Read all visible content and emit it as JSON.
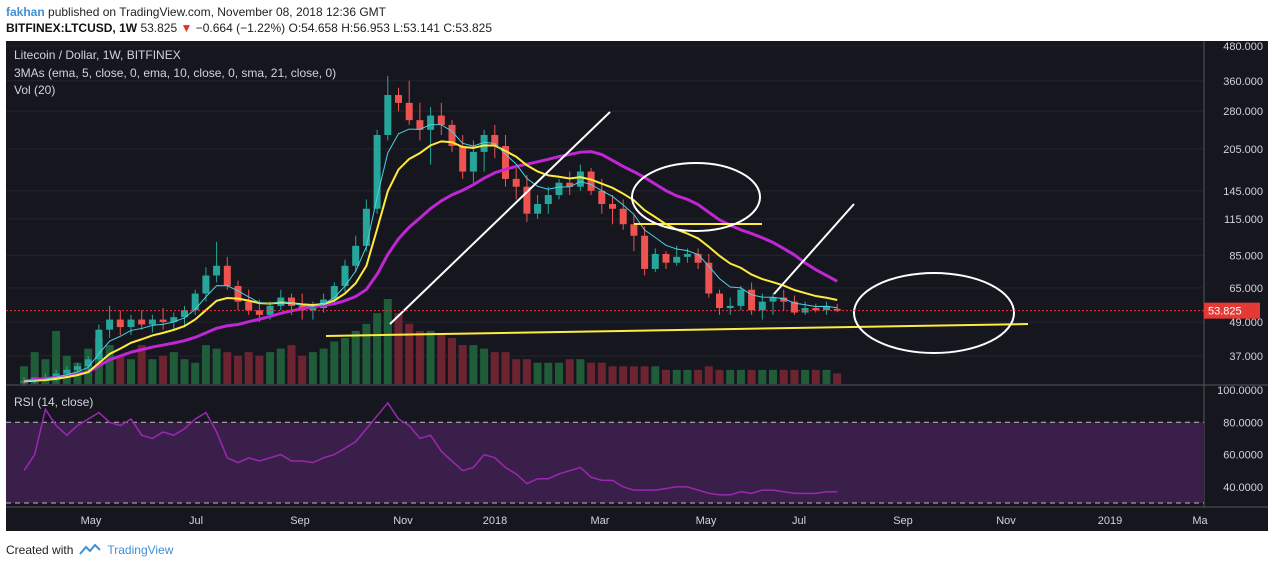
{
  "header": {
    "author": "fakhan",
    "published": "published on TradingView.com, November 08, 2018 12:36 GMT",
    "symbol": "BITFINEX:LTCUSD, 1W",
    "last": "53.825",
    "change": "−0.664 (−1.22%)",
    "open": "O:54.658",
    "high": "H:56.953",
    "low": "L:53.141",
    "close": "C:53.825"
  },
  "chart_data": {
    "type": "candlestick",
    "title": "Litecoin / Dollar, 1W, BITFINEX",
    "indicator_labels": [
      "3MAs (ema, 5, close, 0, ema, 10, close, 0, sma, 21, close, 0)",
      "Vol (20)"
    ],
    "price_axis_ticks": [
      "480.000",
      "360.000",
      "280.000",
      "205.000",
      "145.000",
      "115.000",
      "85.000",
      "65.000",
      "49.000",
      "37.000"
    ],
    "price_scale": "log",
    "last_price_label": "53.825",
    "time_axis_labels": [
      "May",
      "Jul",
      "Sep",
      "Nov",
      "2018",
      "Mar",
      "May",
      "Jul",
      "Sep",
      "Nov",
      "2019",
      "Ma"
    ],
    "candles": [
      [
        30,
        31,
        29,
        30
      ],
      [
        30,
        31,
        29.5,
        31
      ],
      [
        31,
        32,
        30,
        31
      ],
      [
        31,
        33,
        30,
        32
      ],
      [
        32,
        34,
        31,
        33
      ],
      [
        33,
        35,
        32,
        34
      ],
      [
        34,
        37,
        33,
        36
      ],
      [
        36,
        48,
        35,
        46
      ],
      [
        46,
        56,
        43,
        50
      ],
      [
        50,
        54,
        44,
        47
      ],
      [
        47,
        52,
        44,
        50
      ],
      [
        50,
        54,
        46,
        48
      ],
      [
        48,
        52,
        45,
        50
      ],
      [
        50,
        55,
        46,
        49
      ],
      [
        49,
        53,
        46,
        51
      ],
      [
        51,
        56,
        47,
        54
      ],
      [
        54,
        64,
        52,
        62
      ],
      [
        62,
        77,
        58,
        72
      ],
      [
        72,
        95,
        68,
        78
      ],
      [
        78,
        84,
        64,
        66
      ],
      [
        66,
        69,
        54,
        58
      ],
      [
        58,
        64,
        52,
        54
      ],
      [
        54,
        59,
        49,
        52
      ],
      [
        52,
        58,
        50,
        56
      ],
      [
        56,
        64,
        54,
        60
      ],
      [
        60,
        62,
        52,
        56
      ],
      [
        56,
        62,
        50,
        54
      ],
      [
        54,
        58,
        50,
        55
      ],
      [
        55,
        62,
        53,
        59
      ],
      [
        59,
        68,
        57,
        66
      ],
      [
        66,
        82,
        63,
        78
      ],
      [
        78,
        100,
        74,
        92
      ],
      [
        92,
        135,
        88,
        125
      ],
      [
        125,
        240,
        120,
        230
      ],
      [
        230,
        375,
        220,
        320
      ],
      [
        320,
        340,
        280,
        300
      ],
      [
        300,
        360,
        250,
        260
      ],
      [
        260,
        300,
        220,
        240
      ],
      [
        240,
        290,
        180,
        270
      ],
      [
        270,
        300,
        230,
        250
      ],
      [
        250,
        260,
        200,
        210
      ],
      [
        210,
        230,
        160,
        170
      ],
      [
        170,
        220,
        155,
        200
      ],
      [
        200,
        240,
        170,
        230
      ],
      [
        230,
        250,
        190,
        210
      ],
      [
        210,
        230,
        150,
        160
      ],
      [
        160,
        175,
        135,
        150
      ],
      [
        150,
        165,
        112,
        120
      ],
      [
        120,
        140,
        115,
        130
      ],
      [
        130,
        150,
        120,
        140
      ],
      [
        140,
        160,
        135,
        155
      ],
      [
        155,
        170,
        140,
        150
      ],
      [
        150,
        180,
        145,
        170
      ],
      [
        170,
        175,
        140,
        145
      ],
      [
        145,
        160,
        120,
        130
      ],
      [
        130,
        140,
        110,
        125
      ],
      [
        125,
        135,
        105,
        110
      ],
      [
        110,
        120,
        88,
        100
      ],
      [
        100,
        108,
        72,
        76
      ],
      [
        76,
        90,
        74,
        86
      ],
      [
        86,
        88,
        76,
        80
      ],
      [
        80,
        92,
        78,
        84
      ],
      [
        84,
        90,
        80,
        86
      ],
      [
        86,
        90,
        76,
        80
      ],
      [
        80,
        86,
        60,
        62
      ],
      [
        62,
        64,
        52,
        55
      ],
      [
        55,
        60,
        52,
        56
      ],
      [
        56,
        66,
        54,
        64
      ],
      [
        64,
        68,
        52,
        54
      ],
      [
        54,
        62,
        50,
        58
      ],
      [
        58,
        62,
        52,
        60
      ],
      [
        60,
        64,
        54,
        58
      ],
      [
        58,
        61,
        52,
        53
      ],
      [
        53,
        58,
        52,
        55
      ],
      [
        55,
        57,
        53,
        54
      ],
      [
        54,
        58,
        52,
        56
      ],
      [
        54.66,
        56.95,
        53.14,
        53.82
      ]
    ],
    "volume": [
      10,
      18,
      14,
      30,
      16,
      12,
      20,
      26,
      22,
      16,
      14,
      22,
      14,
      16,
      18,
      14,
      12,
      22,
      20,
      18,
      16,
      18,
      16,
      18,
      20,
      22,
      16,
      18,
      20,
      24,
      26,
      30,
      34,
      40,
      48,
      40,
      34,
      30,
      30,
      28,
      26,
      22,
      22,
      20,
      18,
      18,
      14,
      14,
      12,
      12,
      12,
      14,
      14,
      12,
      12,
      10,
      10,
      10,
      10,
      10,
      8,
      8,
      8,
      8,
      10,
      8,
      8,
      8,
      8,
      8,
      8,
      8,
      8,
      8,
      8,
      8,
      6
    ],
    "rsi_label": "RSI (14, close)",
    "rsi_axis_ticks": [
      "100.0000",
      "80.0000",
      "60.0000",
      "40.0000"
    ],
    "rsi": [
      50,
      60,
      88,
      78,
      72,
      78,
      82,
      86,
      80,
      78,
      82,
      72,
      70,
      74,
      72,
      76,
      82,
      86,
      74,
      58,
      55,
      58,
      56,
      58,
      60,
      56,
      56,
      55,
      58,
      60,
      64,
      68,
      76,
      84,
      92,
      82,
      78,
      70,
      72,
      62,
      56,
      50,
      52,
      60,
      58,
      52,
      48,
      42,
      45,
      45,
      48,
      50,
      52,
      46,
      44,
      44,
      40,
      38,
      38,
      38,
      39,
      40,
      40,
      38,
      36,
      35,
      35,
      37,
      36,
      38,
      38,
      37,
      36,
      36,
      36,
      37,
      37
    ],
    "colors": {
      "up": "#26a69a",
      "down": "#ef5350",
      "ema5": "#4dd0e1",
      "ema10": "#ffeb3b",
      "sma21": "#c026d3",
      "rsi": "#9c27b0",
      "background": "#16161f",
      "annotation": "#ffffff",
      "support": "#ffeb3b",
      "last_price": "#e53935"
    }
  },
  "footer": {
    "created_with": "Created with",
    "brand": "TradingView"
  }
}
